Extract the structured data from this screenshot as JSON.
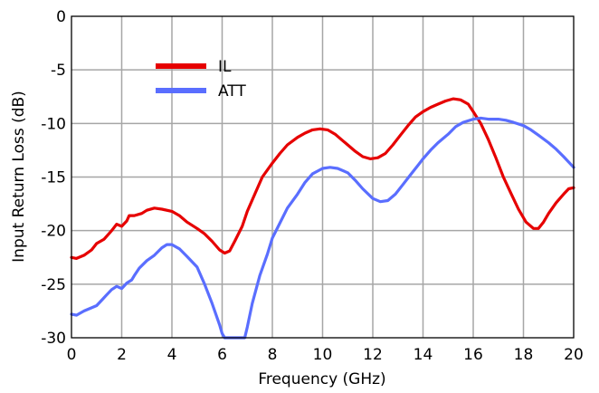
{
  "chart_data": {
    "type": "line",
    "xlabel": "Frequency (GHz)",
    "ylabel": "Input Return Loss (dB)",
    "xlim": [
      0,
      20
    ],
    "ylim": [
      -30,
      0
    ],
    "xticks": [
      0,
      2,
      4,
      6,
      8,
      10,
      12,
      14,
      16,
      18,
      20
    ],
    "yticks": [
      0,
      -5,
      -10,
      -15,
      -20,
      -25,
      -30
    ],
    "xtick_labels": [
      "0",
      "2",
      "4",
      "6",
      "8",
      "10",
      "12",
      "14",
      "16",
      "18",
      "20"
    ],
    "ytick_labels": [
      "0",
      "-5",
      "-10",
      "-15",
      "-20",
      "-25",
      "-30"
    ],
    "grid": true,
    "legend_position": "top-left",
    "series": [
      {
        "name": "IL",
        "color": "#e60000",
        "x": [
          0,
          0.2,
          0.5,
          0.8,
          1.0,
          1.3,
          1.6,
          1.8,
          2.0,
          2.2,
          2.3,
          2.5,
          2.8,
          3.0,
          3.3,
          3.6,
          4.0,
          4.3,
          4.6,
          5.0,
          5.3,
          5.6,
          5.9,
          6.1,
          6.3,
          6.5,
          6.8,
          7.0,
          7.3,
          7.6,
          8.0,
          8.3,
          8.6,
          9.0,
          9.3,
          9.6,
          9.9,
          10.2,
          10.5,
          10.8,
          11.0,
          11.3,
          11.6,
          11.9,
          12.2,
          12.5,
          12.8,
          13.1,
          13.4,
          13.7,
          14.0,
          14.3,
          14.6,
          14.9,
          15.2,
          15.5,
          15.8,
          16.0,
          16.3,
          16.6,
          16.9,
          17.2,
          17.5,
          17.8,
          18.1,
          18.4,
          18.6,
          18.8,
          19.0,
          19.3,
          19.6,
          19.8,
          20.0
        ],
        "values": [
          -22.5,
          -22.6,
          -22.3,
          -21.8,
          -21.2,
          -20.8,
          -20.0,
          -19.4,
          -19.6,
          -19.1,
          -18.6,
          -18.6,
          -18.4,
          -18.1,
          -17.9,
          -18.0,
          -18.2,
          -18.6,
          -19.2,
          -19.8,
          -20.3,
          -21.0,
          -21.8,
          -22.1,
          -21.9,
          -21.0,
          -19.6,
          -18.2,
          -16.6,
          -15.0,
          -13.7,
          -12.8,
          -12.0,
          -11.3,
          -10.9,
          -10.6,
          -10.5,
          -10.6,
          -11.0,
          -11.6,
          -12.0,
          -12.6,
          -13.1,
          -13.3,
          -13.2,
          -12.8,
          -12.0,
          -11.1,
          -10.2,
          -9.4,
          -8.9,
          -8.5,
          -8.2,
          -7.9,
          -7.7,
          -7.8,
          -8.2,
          -8.9,
          -10.0,
          -11.5,
          -13.2,
          -15.0,
          -16.5,
          -18.0,
          -19.2,
          -19.8,
          -19.8,
          -19.2,
          -18.4,
          -17.4,
          -16.6,
          -16.1,
          -16.0
        ]
      },
      {
        "name": "ATT",
        "color": "#5a6eff",
        "x": [
          0,
          0.2,
          0.5,
          0.8,
          1.0,
          1.2,
          1.4,
          1.6,
          1.8,
          2.0,
          2.2,
          2.4,
          2.5,
          2.7,
          3.0,
          3.3,
          3.6,
          3.8,
          4.0,
          4.3,
          4.6,
          5.0,
          5.3,
          5.6,
          5.9,
          6.0,
          6.1,
          6.5,
          6.9,
          7.0,
          7.2,
          7.5,
          7.8,
          8.0,
          8.3,
          8.6,
          9.0,
          9.3,
          9.6,
          10.0,
          10.3,
          10.6,
          11.0,
          11.3,
          11.6,
          12.0,
          12.3,
          12.6,
          12.9,
          13.2,
          13.5,
          13.8,
          14.0,
          14.3,
          14.6,
          15.0,
          15.3,
          15.6,
          16.0,
          16.3,
          16.6,
          17.0,
          17.3,
          17.6,
          18.0,
          18.3,
          18.6,
          19.0,
          19.3,
          19.6,
          20.0
        ],
        "values": [
          -27.8,
          -27.9,
          -27.5,
          -27.2,
          -27.0,
          -26.5,
          -26.0,
          -25.5,
          -25.2,
          -25.4,
          -24.9,
          -24.6,
          -24.2,
          -23.5,
          -22.8,
          -22.3,
          -21.6,
          -21.3,
          -21.3,
          -21.7,
          -22.4,
          -23.4,
          -25.0,
          -26.8,
          -28.8,
          -29.6,
          -30.0,
          -30.0,
          -30.0,
          -29.0,
          -26.8,
          -24.2,
          -22.2,
          -20.7,
          -19.3,
          -17.9,
          -16.6,
          -15.5,
          -14.7,
          -14.2,
          -14.1,
          -14.2,
          -14.6,
          -15.3,
          -16.1,
          -17.0,
          -17.3,
          -17.2,
          -16.6,
          -15.7,
          -14.8,
          -13.9,
          -13.3,
          -12.5,
          -11.8,
          -11.0,
          -10.3,
          -9.9,
          -9.6,
          -9.5,
          -9.6,
          -9.6,
          -9.7,
          -9.9,
          -10.2,
          -10.6,
          -11.1,
          -11.8,
          -12.4,
          -13.1,
          -14.1
        ]
      }
    ]
  }
}
